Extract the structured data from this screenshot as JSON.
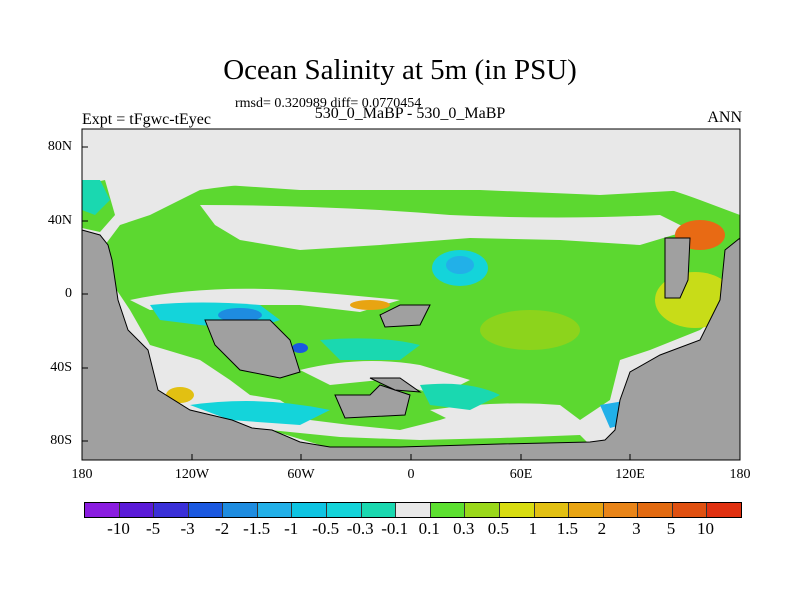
{
  "title": "Ocean Salinity at 5m (in PSU)",
  "stats": "rmsd= 0.320989 diff= 0.0770454",
  "left_string": "Expt = tFgwc-tEyec",
  "center_string": "530_0_MaBP - 530_0_MaBP",
  "right_string": "ANN",
  "chart_data": {
    "type": "heatmap",
    "title": "Ocean Salinity at 5m (in PSU)",
    "x_ticks": [
      "180",
      "120W",
      "60W",
      "0",
      "60E",
      "120E",
      "180"
    ],
    "y_ticks": [
      "80N",
      "40N",
      "0",
      "40S",
      "80S"
    ],
    "xlim": [
      -180,
      180
    ],
    "ylim": [
      -90,
      90
    ],
    "colorbar": {
      "labels": [
        "-10",
        "-5",
        "-3",
        "-2",
        "-1.5",
        "-1",
        "-0.5",
        "-0.3",
        "-0.1",
        "0.1",
        "0.3",
        "0.5",
        "1",
        "1.5",
        "2",
        "3",
        "5",
        "10"
      ],
      "colors": [
        "#8a1ce0",
        "#5a1ad8",
        "#3a30d8",
        "#1a58e0",
        "#1e8ce0",
        "#22b0e8",
        "#0ec4e2",
        "#14d4da",
        "#1ad8b0",
        "#e8e8e8",
        "#5ce030",
        "#9ad81a",
        "#d8dc10",
        "#e2c012",
        "#e8a412",
        "#e88418",
        "#e26a10",
        "#e05010",
        "#e03010"
      ]
    },
    "land_color": "#a0a0a0",
    "dominant_range": "0.1 to 0.3"
  }
}
